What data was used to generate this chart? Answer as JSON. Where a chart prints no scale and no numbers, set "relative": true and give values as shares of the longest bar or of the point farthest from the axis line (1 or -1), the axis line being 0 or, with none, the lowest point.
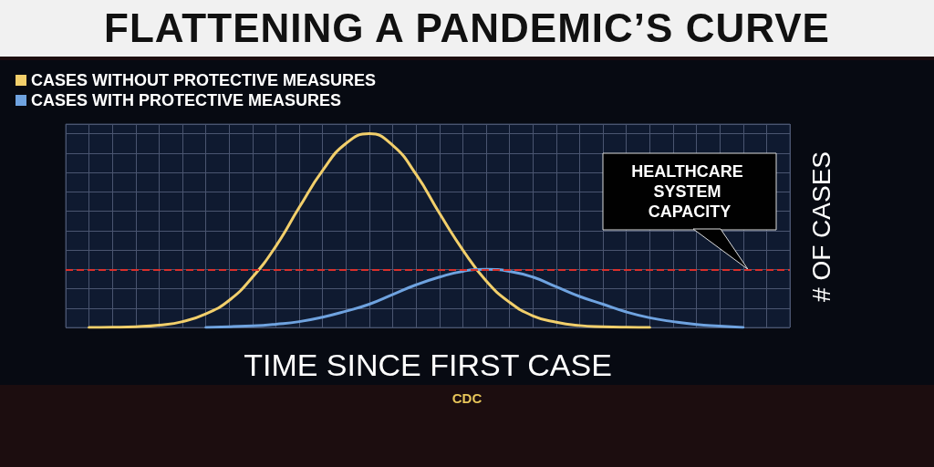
{
  "chart_data": {
    "type": "line",
    "title": "FLATTENING A PANDEMIC’S CURVE",
    "xlabel": "TIME SINCE FIRST CASE",
    "ylabel": "# OF CASES",
    "relative": true,
    "grid": true,
    "legend": "top left",
    "marker": "none",
    "line_style": "solid",
    "categories": [
      null,
      null,
      null,
      null,
      null,
      null,
      null,
      null,
      null,
      null,
      null,
      null,
      null,
      null,
      null,
      null,
      null,
      null,
      null,
      null,
      null,
      null,
      null,
      null,
      null,
      null,
      null,
      null,
      null,
      null,
      null,
      null
    ],
    "series": [
      {
        "name": "CASES WITHOUT PROTECTIVE MEASURES",
        "color": "#f2cf6b",
        "values": [
          null,
          0,
          0.001,
          0.004,
          0.012,
          0.03,
          0.07,
          0.14,
          0.26,
          0.42,
          0.62,
          0.81,
          0.95,
          1,
          0.94,
          0.79,
          0.59,
          0.4,
          0.24,
          0.13,
          0.06,
          0.027,
          0.01,
          0.004,
          0.001,
          0,
          null,
          null,
          null,
          null,
          null,
          null
        ]
      },
      {
        "name": "CASES WITH PROTECTIVE MEASURES",
        "color": "#6fa3e0",
        "values": [
          null,
          null,
          null,
          null,
          null,
          null,
          0,
          0.004,
          0.008,
          0.017,
          0.03,
          0.053,
          0.084,
          0.12,
          0.17,
          0.22,
          0.26,
          0.29,
          0.3,
          0.29,
          0.26,
          0.21,
          0.16,
          0.12,
          0.08,
          0.05,
          0.03,
          0.015,
          0.007,
          0,
          null,
          null
        ]
      }
    ],
    "ref_lines": [
      {
        "axis": "y",
        "value": 0.3,
        "label": "HEALTHCARE SYSTEM CAPACITY",
        "color": "#d9302c",
        "line_style": "dashed"
      }
    ],
    "annotations": [
      "CDC"
    ]
  }
}
